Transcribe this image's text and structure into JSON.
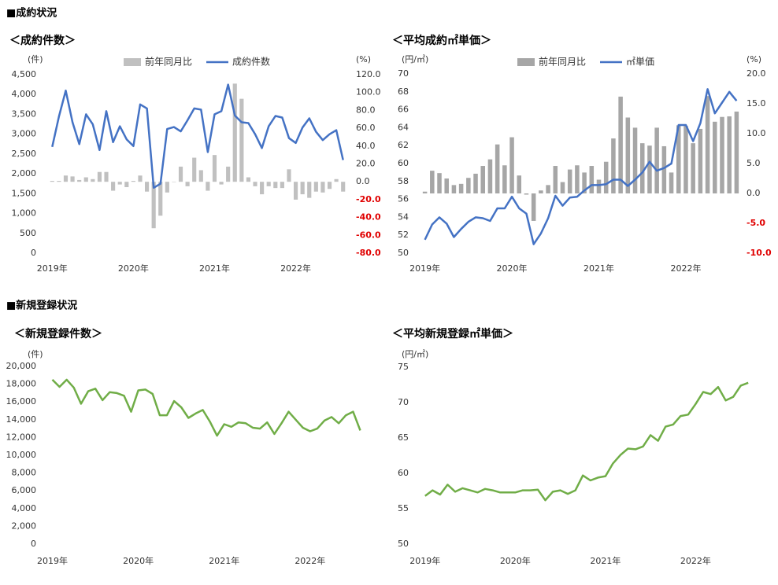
{
  "sections": [
    "■成約状況",
    "■新規登録状況"
  ],
  "chart_data": [
    {
      "type": "combo",
      "title": "＜成約件数＞",
      "ylabel": "(件)",
      "y2label": "(%)",
      "categories": [
        "2019年",
        null,
        null,
        null,
        null,
        null,
        null,
        null,
        null,
        null,
        null,
        null,
        "2020年",
        null,
        null,
        null,
        null,
        null,
        null,
        null,
        null,
        null,
        null,
        null,
        "2021年",
        null,
        null,
        null,
        null,
        null,
        null,
        null,
        null,
        null,
        null,
        null,
        "2022年",
        null,
        null,
        null,
        null,
        null,
        null,
        null
      ],
      "series": [
        {
          "name": "前年同月比",
          "type": "bar",
          "axis": "y2",
          "color": "#c0c0c0",
          "values": [
            1,
            1,
            7,
            6,
            2,
            5,
            3,
            11,
            11,
            -10,
            -3,
            -6,
            1,
            7,
            -11,
            -52,
            -38,
            -12,
            0,
            17,
            -5,
            27,
            13,
            -10,
            30,
            -3,
            17,
            110,
            93,
            5,
            -5,
            -14,
            -5,
            -7,
            -7,
            14,
            -20,
            -14,
            -18,
            -11,
            -12,
            -8,
            3,
            -11
          ]
        },
        {
          "name": "成約件数",
          "type": "line",
          "color": "#4472c4",
          "values": [
            2680,
            3450,
            4100,
            3300,
            2750,
            3500,
            3250,
            2600,
            3580,
            2800,
            3200,
            2870,
            2700,
            3750,
            3650,
            1650,
            1750,
            3130,
            3180,
            3070,
            3350,
            3650,
            3620,
            2550,
            3500,
            3580,
            4250,
            3470,
            3300,
            3280,
            3000,
            2650,
            3200,
            3460,
            3420,
            2900,
            2780,
            3170,
            3400,
            3060,
            2850,
            3000,
            3100,
            2350
          ]
        }
      ],
      "ylim": [
        0,
        4500
      ],
      "yticks": [
        0,
        500,
        {
          "value": 1000,
          "label": "1,000"
        },
        {
          "value": 1500,
          "label": "1,500"
        },
        {
          "value": 2000,
          "label": "2,000"
        },
        {
          "value": 2500,
          "label": "2,500"
        },
        {
          "value": 3000,
          "label": "3,000"
        },
        {
          "value": 3500,
          "label": "3,500"
        },
        {
          "value": 4000,
          "label": "4,000"
        },
        {
          "value": 4500,
          "label": "4,500"
        }
      ],
      "y2lim": [
        -80,
        120
      ],
      "y2ticks": [
        {
          "value": 120,
          "label": "120.0"
        },
        {
          "value": 100,
          "label": "100.0"
        },
        {
          "value": 80,
          "label": "80.0"
        },
        {
          "value": 60,
          "label": "60.0"
        },
        {
          "value": 40,
          "label": "40.0"
        },
        {
          "value": 20,
          "label": "20.0"
        },
        {
          "value": 0,
          "label": "0.0"
        },
        {
          "value": -20,
          "label": "-20.0"
        },
        {
          "value": -40,
          "label": "-40.0"
        },
        {
          "value": -60,
          "label": "-60.0"
        },
        {
          "value": -80,
          "label": "-80.0"
        }
      ],
      "y2_negative_label_color": "#e00000",
      "grid": false,
      "legend": "top"
    },
    {
      "type": "combo",
      "title": "＜平均成約㎡単価＞",
      "ylabel": "(円/㎡)",
      "y2label": "(%)",
      "categories": [
        "2019年",
        null,
        null,
        null,
        null,
        null,
        null,
        null,
        null,
        null,
        null,
        null,
        "2020年",
        null,
        null,
        null,
        null,
        null,
        null,
        null,
        null,
        null,
        null,
        null,
        "2021年",
        null,
        null,
        null,
        null,
        null,
        null,
        null,
        null,
        null,
        null,
        null,
        "2022年",
        null,
        null,
        null,
        null,
        null,
        null,
        null
      ],
      "series": [
        {
          "name": "前年同月比",
          "type": "bar",
          "axis": "y2",
          "color": "#a6a6a6",
          "values": [
            0.3,
            3.8,
            3.4,
            2.5,
            1.4,
            1.6,
            2.6,
            3.3,
            4.6,
            5.7,
            8.2,
            4.7,
            9.4,
            3.0,
            -0.2,
            -4.6,
            0.5,
            1.4,
            4.6,
            1.9,
            4.0,
            4.7,
            3.5,
            4.6,
            2.3,
            5.3,
            9.2,
            16.2,
            12.7,
            11.0,
            8.4,
            8.0,
            11.0,
            7.9,
            3.5,
            11.4,
            11.3,
            8.4,
            10.8,
            16.3,
            12.0,
            12.8,
            12.9,
            13.7
          ]
        },
        {
          "name": "㎡単価",
          "type": "line",
          "color": "#4472c4",
          "values": [
            51.5,
            53.2,
            54.0,
            53.3,
            51.8,
            52.7,
            53.5,
            54.0,
            53.9,
            53.6,
            55.0,
            55.0,
            56.3,
            55.0,
            54.4,
            51.0,
            52.2,
            53.9,
            56.4,
            55.3,
            56.2,
            56.3,
            57.0,
            57.6,
            57.6,
            57.7,
            58.2,
            58.2,
            57.5,
            58.2,
            59.0,
            60.2,
            59.2,
            59.5,
            60.0,
            64.3,
            64.3,
            62.5,
            64.5,
            68.3,
            65.6,
            66.8,
            68.0,
            67.0
          ]
        }
      ],
      "ylim": [
        50,
        70
      ],
      "yticks": [
        50,
        52,
        54,
        56,
        58,
        60,
        62,
        64,
        66,
        68,
        70
      ],
      "y2lim": [
        -10,
        20
      ],
      "y2ticks": [
        {
          "value": 20,
          "label": "20.0"
        },
        {
          "value": 15,
          "label": "15.0"
        },
        {
          "value": 10,
          "label": "10.0"
        },
        {
          "value": 5,
          "label": "5.0"
        },
        {
          "value": 0,
          "label": "0.0"
        },
        {
          "value": -5,
          "label": "-5.0"
        },
        {
          "value": -10,
          "label": "-10.0"
        }
      ],
      "y2_negative_label_color": "#e00000",
      "grid": false,
      "legend": "top"
    },
    {
      "type": "line",
      "title": "＜新規登録件数＞",
      "ylabel": "(件)",
      "color": "#70ad47",
      "categories": [
        "2019年",
        null,
        null,
        null,
        null,
        null,
        null,
        null,
        null,
        null,
        null,
        null,
        "2020年",
        null,
        null,
        null,
        null,
        null,
        null,
        null,
        null,
        null,
        null,
        null,
        "2021年",
        null,
        null,
        null,
        null,
        null,
        null,
        null,
        null,
        null,
        null,
        null,
        "2022年",
        null,
        null,
        null,
        null,
        null,
        null,
        null
      ],
      "values": [
        18500,
        17700,
        18500,
        17600,
        15800,
        17200,
        17500,
        16200,
        17100,
        17000,
        16700,
        14900,
        17300,
        17400,
        16900,
        14500,
        14500,
        16100,
        15400,
        14200,
        14700,
        15100,
        13800,
        12200,
        13500,
        13200,
        13700,
        13600,
        13100,
        13000,
        13700,
        12400,
        13600,
        14900,
        14000,
        13100,
        12700,
        13000,
        13900,
        14300,
        13600,
        14500,
        14900,
        12800
      ],
      "ylim": [
        0,
        20000
      ],
      "yticks": [
        0,
        {
          "value": 2000,
          "label": "2,000"
        },
        {
          "value": 4000,
          "label": "4,000"
        },
        {
          "value": 6000,
          "label": "6,000"
        },
        {
          "value": 8000,
          "label": "8,000"
        },
        {
          "value": 10000,
          "label": "10,000"
        },
        {
          "value": 12000,
          "label": "12,000"
        },
        {
          "value": 14000,
          "label": "14,000"
        },
        {
          "value": 16000,
          "label": "16,000"
        },
        {
          "value": 18000,
          "label": "18,000"
        },
        {
          "value": 20000,
          "label": "20,000"
        }
      ],
      "grid": false
    },
    {
      "type": "line",
      "title": "＜平均新規登録㎡単価＞",
      "ylabel": "(円/㎡)",
      "color": "#70ad47",
      "categories": [
        "2019年",
        null,
        null,
        null,
        null,
        null,
        null,
        null,
        null,
        null,
        null,
        null,
        "2020年",
        null,
        null,
        null,
        null,
        null,
        null,
        null,
        null,
        null,
        null,
        null,
        "2021年",
        null,
        null,
        null,
        null,
        null,
        null,
        null,
        null,
        null,
        null,
        null,
        "2022年",
        null,
        null,
        null,
        null,
        null,
        null,
        null
      ],
      "values": [
        56.8,
        57.6,
        57.0,
        58.4,
        57.4,
        57.9,
        57.6,
        57.3,
        57.8,
        57.6,
        57.3,
        57.3,
        57.3,
        57.6,
        57.6,
        57.7,
        56.2,
        57.4,
        57.6,
        57.1,
        57.6,
        59.7,
        59.0,
        59.4,
        59.6,
        61.4,
        62.6,
        63.5,
        63.4,
        63.8,
        65.4,
        64.6,
        66.6,
        66.9,
        68.1,
        68.3,
        69.8,
        71.5,
        71.2,
        72.2,
        70.3,
        70.8,
        72.4,
        72.8
      ],
      "ylim": [
        50,
        75
      ],
      "yticks": [
        50,
        55,
        60,
        65,
        70,
        75
      ],
      "grid": false
    }
  ]
}
